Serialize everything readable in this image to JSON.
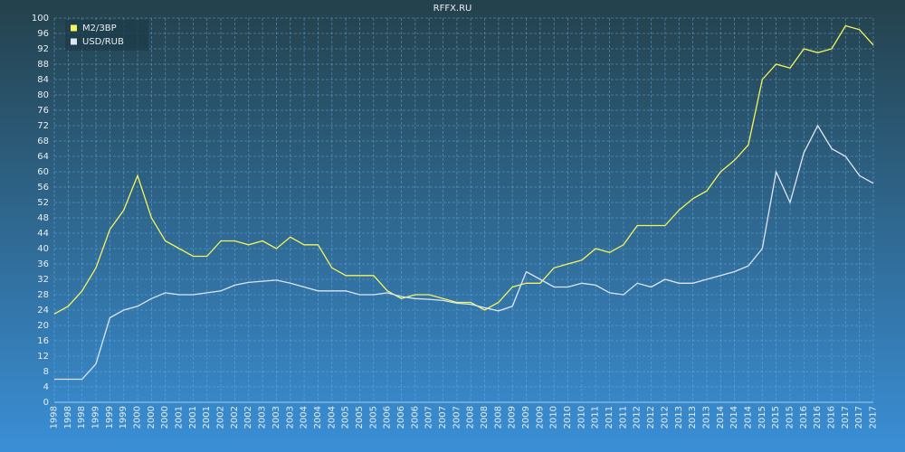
{
  "chart_data": {
    "type": "line",
    "title": "RFFX.RU",
    "categories": [
      "1998",
      "1998",
      "1998",
      "1999",
      "1999",
      "1999",
      "2000",
      "2000",
      "2000",
      "2001",
      "2001",
      "2001",
      "2002",
      "2002",
      "2002",
      "2003",
      "2003",
      "2003",
      "2004",
      "2004",
      "2004",
      "2005",
      "2005",
      "2005",
      "2006",
      "2006",
      "2006",
      "2007",
      "2007",
      "2007",
      "2008",
      "2008",
      "2008",
      "2009",
      "2009",
      "2009",
      "2010",
      "2010",
      "2010",
      "2011",
      "2011",
      "2011",
      "2012",
      "2012",
      "2012",
      "2013",
      "2013",
      "2013",
      "2014",
      "2014",
      "2014",
      "2015",
      "2015",
      "2015",
      "2016",
      "2016",
      "2016",
      "2017",
      "2017",
      "2017"
    ],
    "series": [
      {
        "name": "M2/ЗВР",
        "color": "#f5f55a",
        "values": [
          23,
          25,
          29,
          35,
          45,
          50,
          59,
          48,
          42,
          40,
          38,
          38,
          42,
          42,
          41,
          42,
          40,
          43,
          41,
          41,
          35,
          33,
          33,
          33,
          29,
          27,
          28,
          28,
          27,
          26,
          26,
          24,
          26,
          30,
          31,
          31,
          35,
          36,
          37,
          40,
          39,
          41,
          46,
          46,
          46,
          50,
          53,
          55,
          60,
          63,
          67,
          84,
          88,
          87,
          92,
          91,
          92,
          98,
          97,
          93
        ]
      },
      {
        "name": "USD/RUB",
        "color": "#dde6f5",
        "values": [
          6,
          6,
          6,
          10,
          22,
          24,
          25,
          27,
          28.5,
          28,
          28,
          28.5,
          29,
          30.5,
          31.2,
          31.5,
          31.8,
          31,
          30,
          29,
          29,
          29,
          28,
          28,
          28.5,
          27.5,
          27,
          26.8,
          26.5,
          25.8,
          25.5,
          24.6,
          23.8,
          25,
          34,
          32,
          30,
          30,
          31,
          30.5,
          28.5,
          28,
          31,
          30,
          32,
          31,
          31,
          32,
          33,
          34,
          35.5,
          40,
          60,
          52,
          65,
          72,
          66,
          64,
          59,
          57
        ]
      }
    ],
    "ylim": [
      0,
      100
    ],
    "yticks": [
      0,
      4,
      8,
      12,
      16,
      20,
      24,
      28,
      32,
      36,
      40,
      44,
      48,
      52,
      56,
      60,
      64,
      68,
      72,
      76,
      80,
      84,
      88,
      92,
      96,
      100
    ],
    "grid": true,
    "legend": "top-left"
  }
}
